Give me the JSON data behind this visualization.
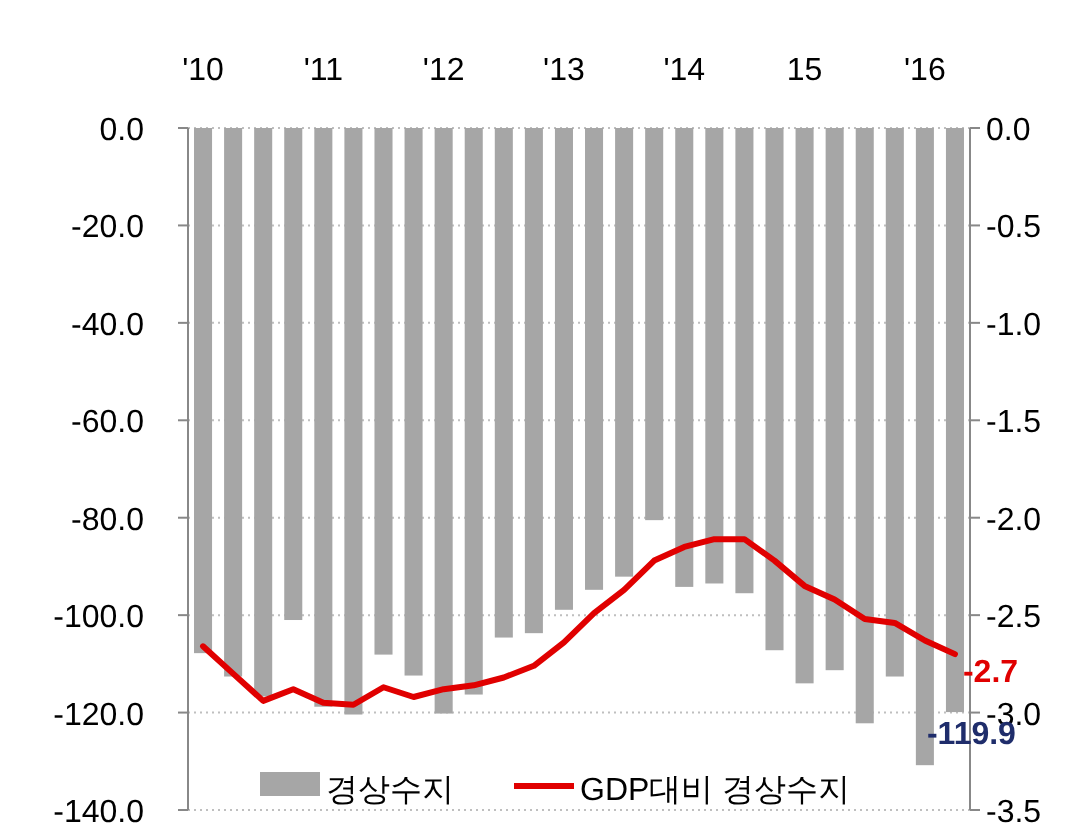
{
  "chart_data": {
    "type": "bar",
    "categories": [
      "'10",
      null,
      null,
      null,
      "'11",
      null,
      null,
      null,
      "'12",
      null,
      null,
      null,
      "'13",
      null,
      null,
      null,
      "'14",
      null,
      null,
      null,
      "15",
      null,
      null,
      null,
      "'16",
      null
    ],
    "series": [
      {
        "name": "경상수지",
        "type": "bar",
        "color": "#a6a6a6",
        "values": [
          -107.8,
          -112.6,
          -116.7,
          -101.0,
          -118.8,
          -120.4,
          -108.1,
          -112.4,
          -120.2,
          -116.3,
          -104.6,
          -103.7,
          -98.9,
          -94.8,
          -92.1,
          -80.5,
          -94.2,
          -93.5,
          -95.5,
          -107.2,
          -114.0,
          -111.3,
          -122.2,
          -112.6,
          -130.8,
          -119.9
        ],
        "value_labels": [
          null,
          null,
          null,
          null,
          null,
          null,
          null,
          null,
          null,
          null,
          null,
          null,
          null,
          null,
          null,
          null,
          null,
          null,
          null,
          null,
          null,
          null,
          null,
          null,
          null,
          "-119.9"
        ]
      },
      {
        "name": "GDP대비 경상수지",
        "type": "line",
        "axis": "y2",
        "color": "#e00000",
        "values": [
          -2.66,
          -2.8,
          -2.94,
          -2.88,
          -2.95,
          -2.96,
          -2.87,
          -2.92,
          -2.88,
          -2.86,
          -2.82,
          -2.76,
          -2.64,
          -2.49,
          -2.37,
          -2.22,
          -2.15,
          -2.11,
          -2.11,
          -2.22,
          -2.35,
          -2.42,
          -2.52,
          -2.54,
          -2.63,
          -2.7
        ],
        "value_labels": [
          null,
          null,
          null,
          null,
          null,
          null,
          null,
          null,
          null,
          null,
          null,
          null,
          null,
          null,
          null,
          null,
          null,
          null,
          null,
          null,
          null,
          null,
          null,
          null,
          null,
          "-2.7"
        ]
      }
    ],
    "ylim": [
      -140,
      0
    ],
    "yticks": [
      {
        "value": 0,
        "label": "0.0"
      },
      {
        "value": -20,
        "label": "-20.0"
      },
      {
        "value": -40,
        "label": "-40.0"
      },
      {
        "value": -60,
        "label": "-60.0"
      },
      {
        "value": -80,
        "label": "-80.0"
      },
      {
        "value": -100,
        "label": "-100.0"
      },
      {
        "value": -120,
        "label": "-120.0"
      },
      {
        "value": -140,
        "label": "-140.0"
      }
    ],
    "y2lim": [
      -3.5,
      0
    ],
    "y2ticks": [
      {
        "value": 0,
        "label": "0.0"
      },
      {
        "value": -0.5,
        "label": "-0.5"
      },
      {
        "value": -1,
        "label": "-1.0"
      },
      {
        "value": -1.5,
        "label": "-1.5"
      },
      {
        "value": -2,
        "label": "-2.0"
      },
      {
        "value": -2.5,
        "label": "-2.5"
      },
      {
        "value": -3,
        "label": "-3.0"
      },
      {
        "value": -3.5,
        "label": "-3.5"
      }
    ],
    "grid": "y",
    "legend": "bottom"
  }
}
